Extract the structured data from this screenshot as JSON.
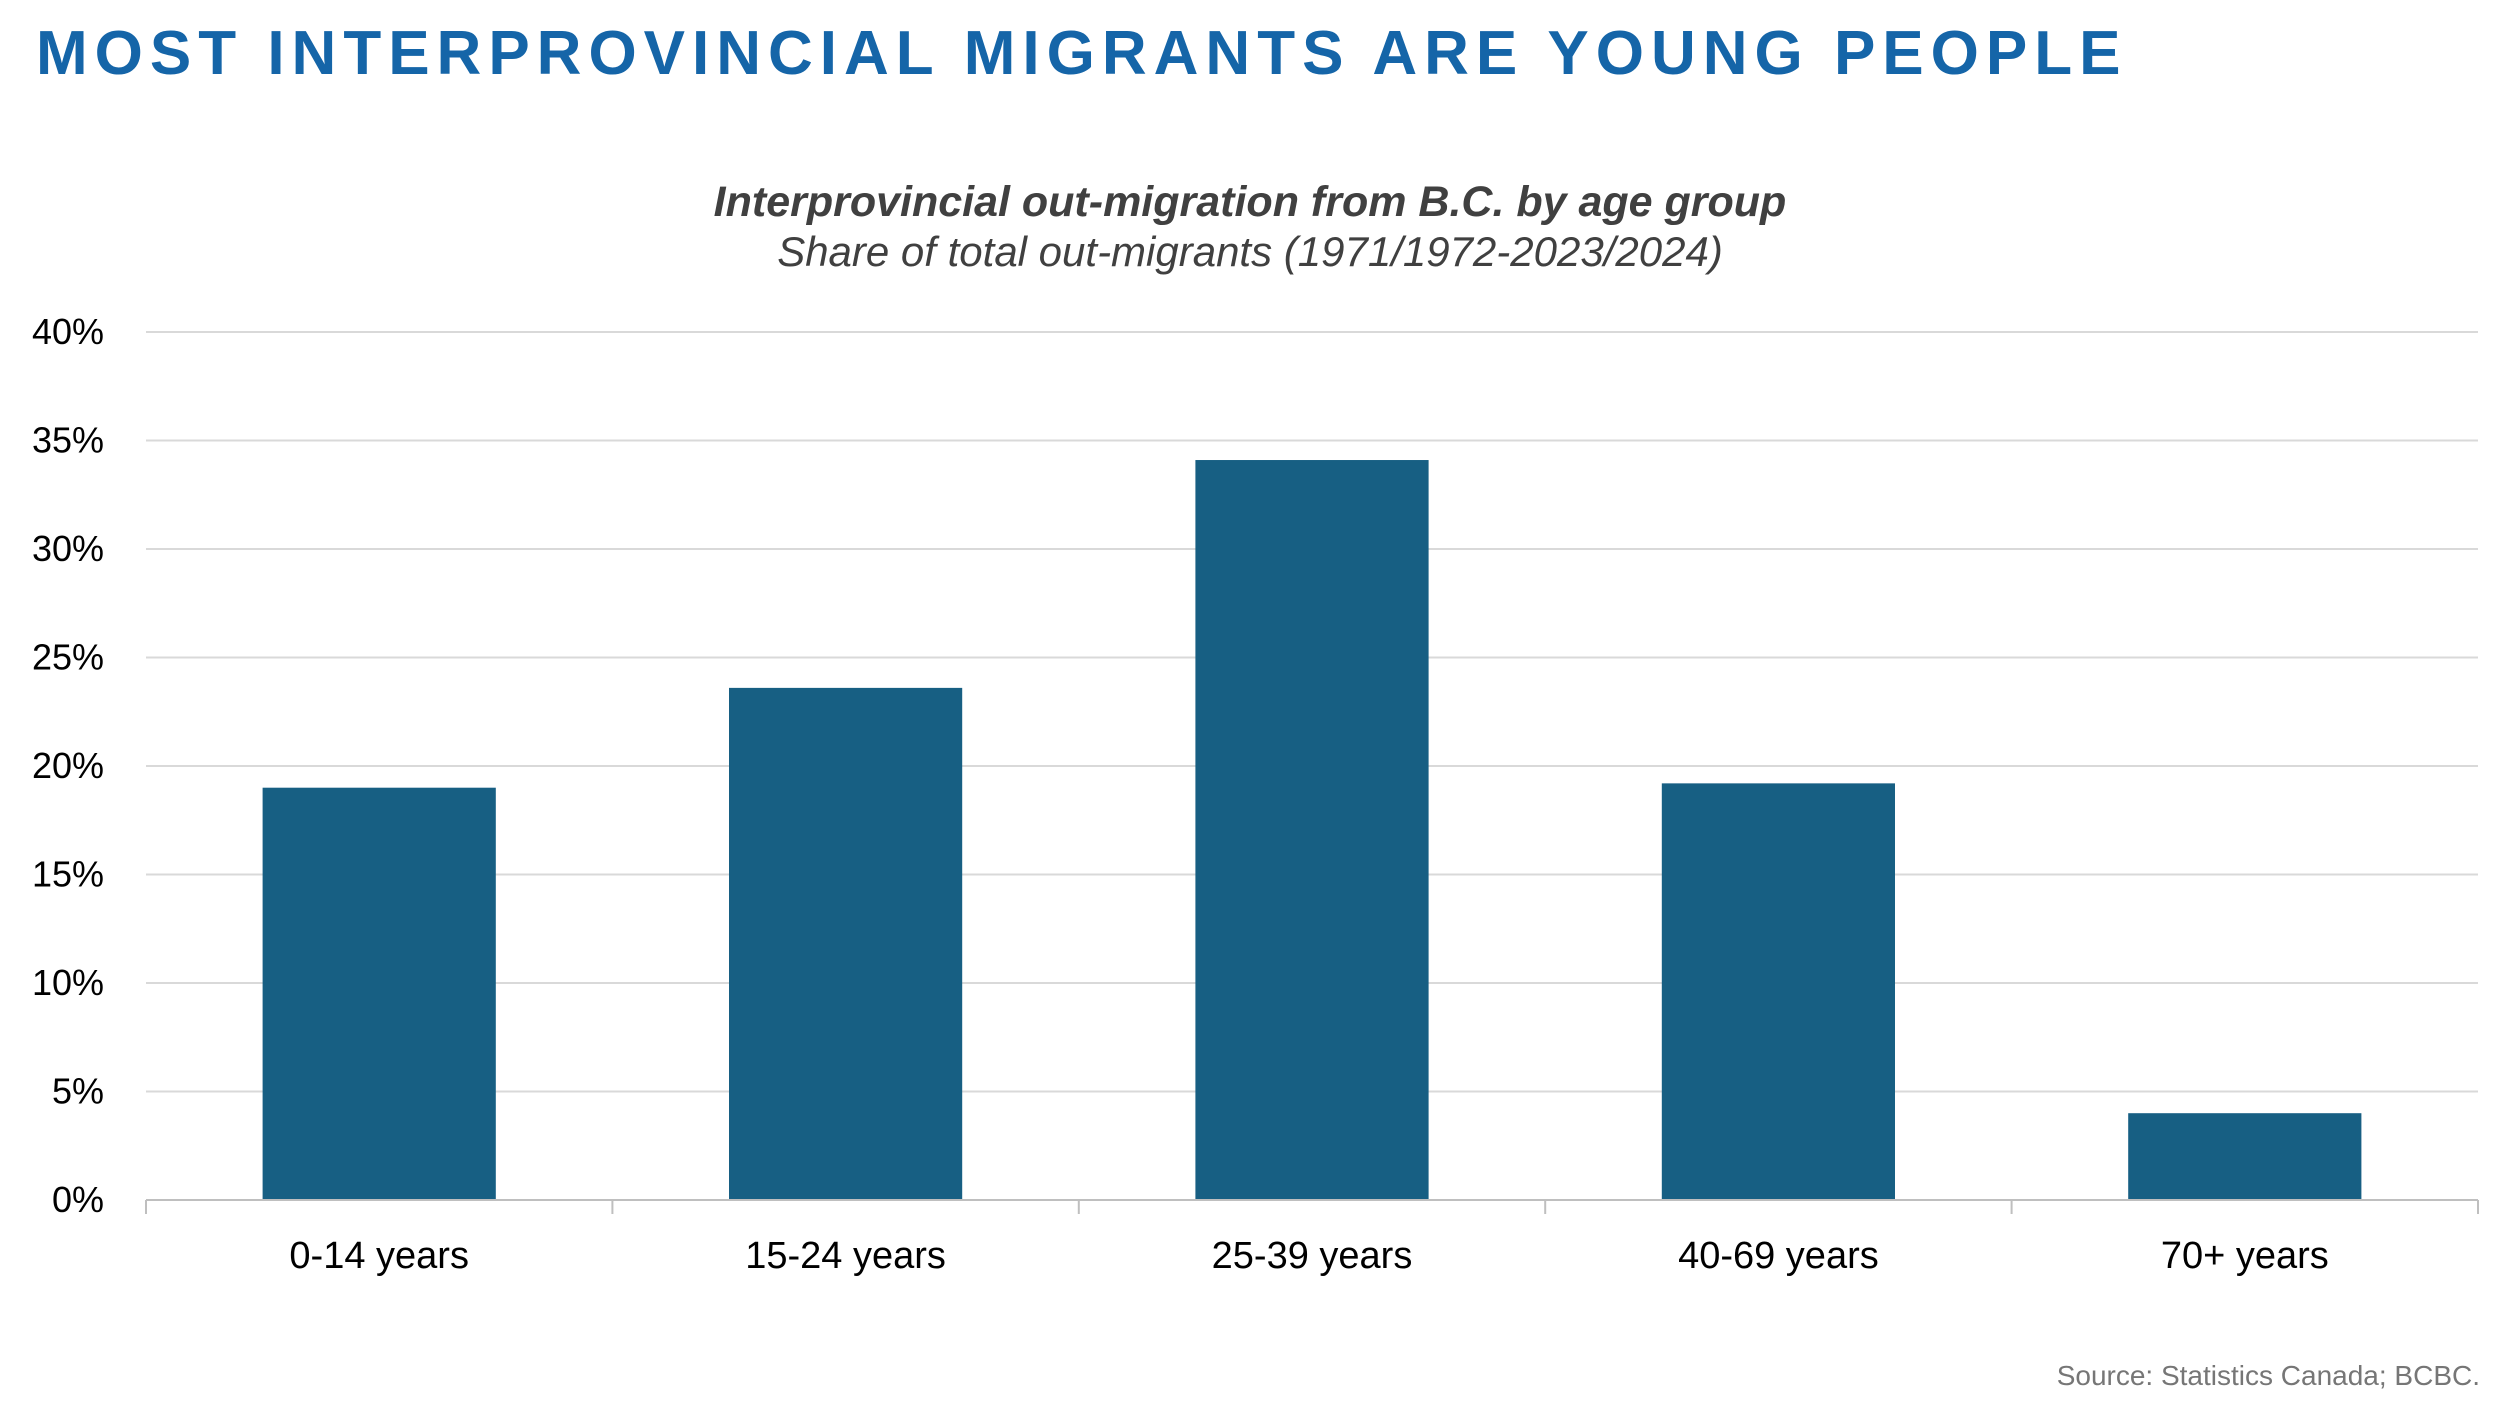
{
  "headline": "MOST INTERPROVINCIAL MIGRANTS ARE YOUNG PEOPLE",
  "source": "Source: Statistics Canada; BCBC.",
  "colors": {
    "headline": "#1565A8",
    "bar": "#175F83",
    "grid": "#D9D9D9",
    "axis": "#BFBFBF",
    "text": "#404040"
  },
  "chart_data": {
    "type": "bar",
    "title": "Interprovincial out-migration from B.C. by age group",
    "subtitle": "Share of total out-migrants (1971/1972-2023/2024)",
    "categories": [
      "0-14 years",
      "15-24 years",
      "25-39 years",
      "40-69 years",
      "70+ years"
    ],
    "values": [
      19.0,
      23.6,
      34.1,
      19.2,
      4.0
    ],
    "ylim": [
      0,
      40
    ],
    "yticks": [
      0,
      5,
      10,
      15,
      20,
      25,
      30,
      35,
      40
    ],
    "ytick_labels": [
      "0%",
      "5%",
      "10%",
      "15%",
      "20%",
      "25%",
      "30%",
      "35%",
      "40%"
    ],
    "grid": true,
    "legend": "none"
  }
}
